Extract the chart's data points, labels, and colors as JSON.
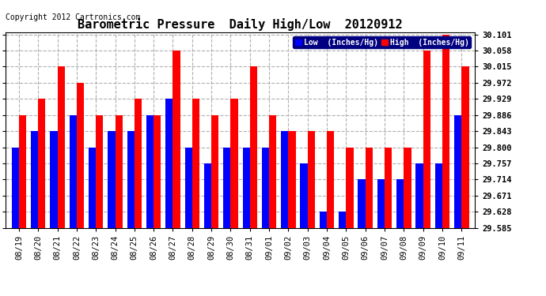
{
  "title": "Barometric Pressure  Daily High/Low  20120912",
  "copyright": "Copyright 2012 Cartronics.com",
  "categories": [
    "08/19",
    "08/20",
    "08/21",
    "08/22",
    "08/23",
    "08/24",
    "08/25",
    "08/26",
    "08/27",
    "08/28",
    "08/29",
    "08/30",
    "08/31",
    "09/01",
    "09/02",
    "09/03",
    "09/04",
    "09/05",
    "09/06",
    "09/07",
    "09/08",
    "09/09",
    "09/10",
    "09/11"
  ],
  "low_values": [
    29.8,
    29.843,
    29.843,
    29.886,
    29.8,
    29.843,
    29.843,
    29.886,
    29.929,
    29.8,
    29.757,
    29.8,
    29.8,
    29.8,
    29.843,
    29.757,
    29.628,
    29.628,
    29.714,
    29.714,
    29.714,
    29.757,
    29.757,
    29.886
  ],
  "high_values": [
    29.886,
    29.929,
    30.015,
    29.972,
    29.886,
    29.886,
    29.929,
    29.886,
    30.058,
    29.929,
    29.886,
    29.929,
    30.015,
    29.886,
    29.843,
    29.843,
    29.843,
    29.8,
    29.8,
    29.8,
    29.8,
    30.058,
    30.101,
    30.015
  ],
  "low_color": "#0000ff",
  "high_color": "#ff0000",
  "bg_color": "#ffffff",
  "grid_color": "#b0b0b0",
  "ylim_min": 29.585,
  "ylim_max": 30.101,
  "yticks": [
    29.585,
    29.628,
    29.671,
    29.714,
    29.757,
    29.8,
    29.843,
    29.886,
    29.929,
    29.972,
    30.015,
    30.058,
    30.101
  ],
  "legend_low_label": "Low  (Inches/Hg)",
  "legend_high_label": "High  (Inches/Hg)",
  "title_fontsize": 11,
  "copyright_fontsize": 7,
  "tick_fontsize": 7.5,
  "bar_width": 0.38
}
